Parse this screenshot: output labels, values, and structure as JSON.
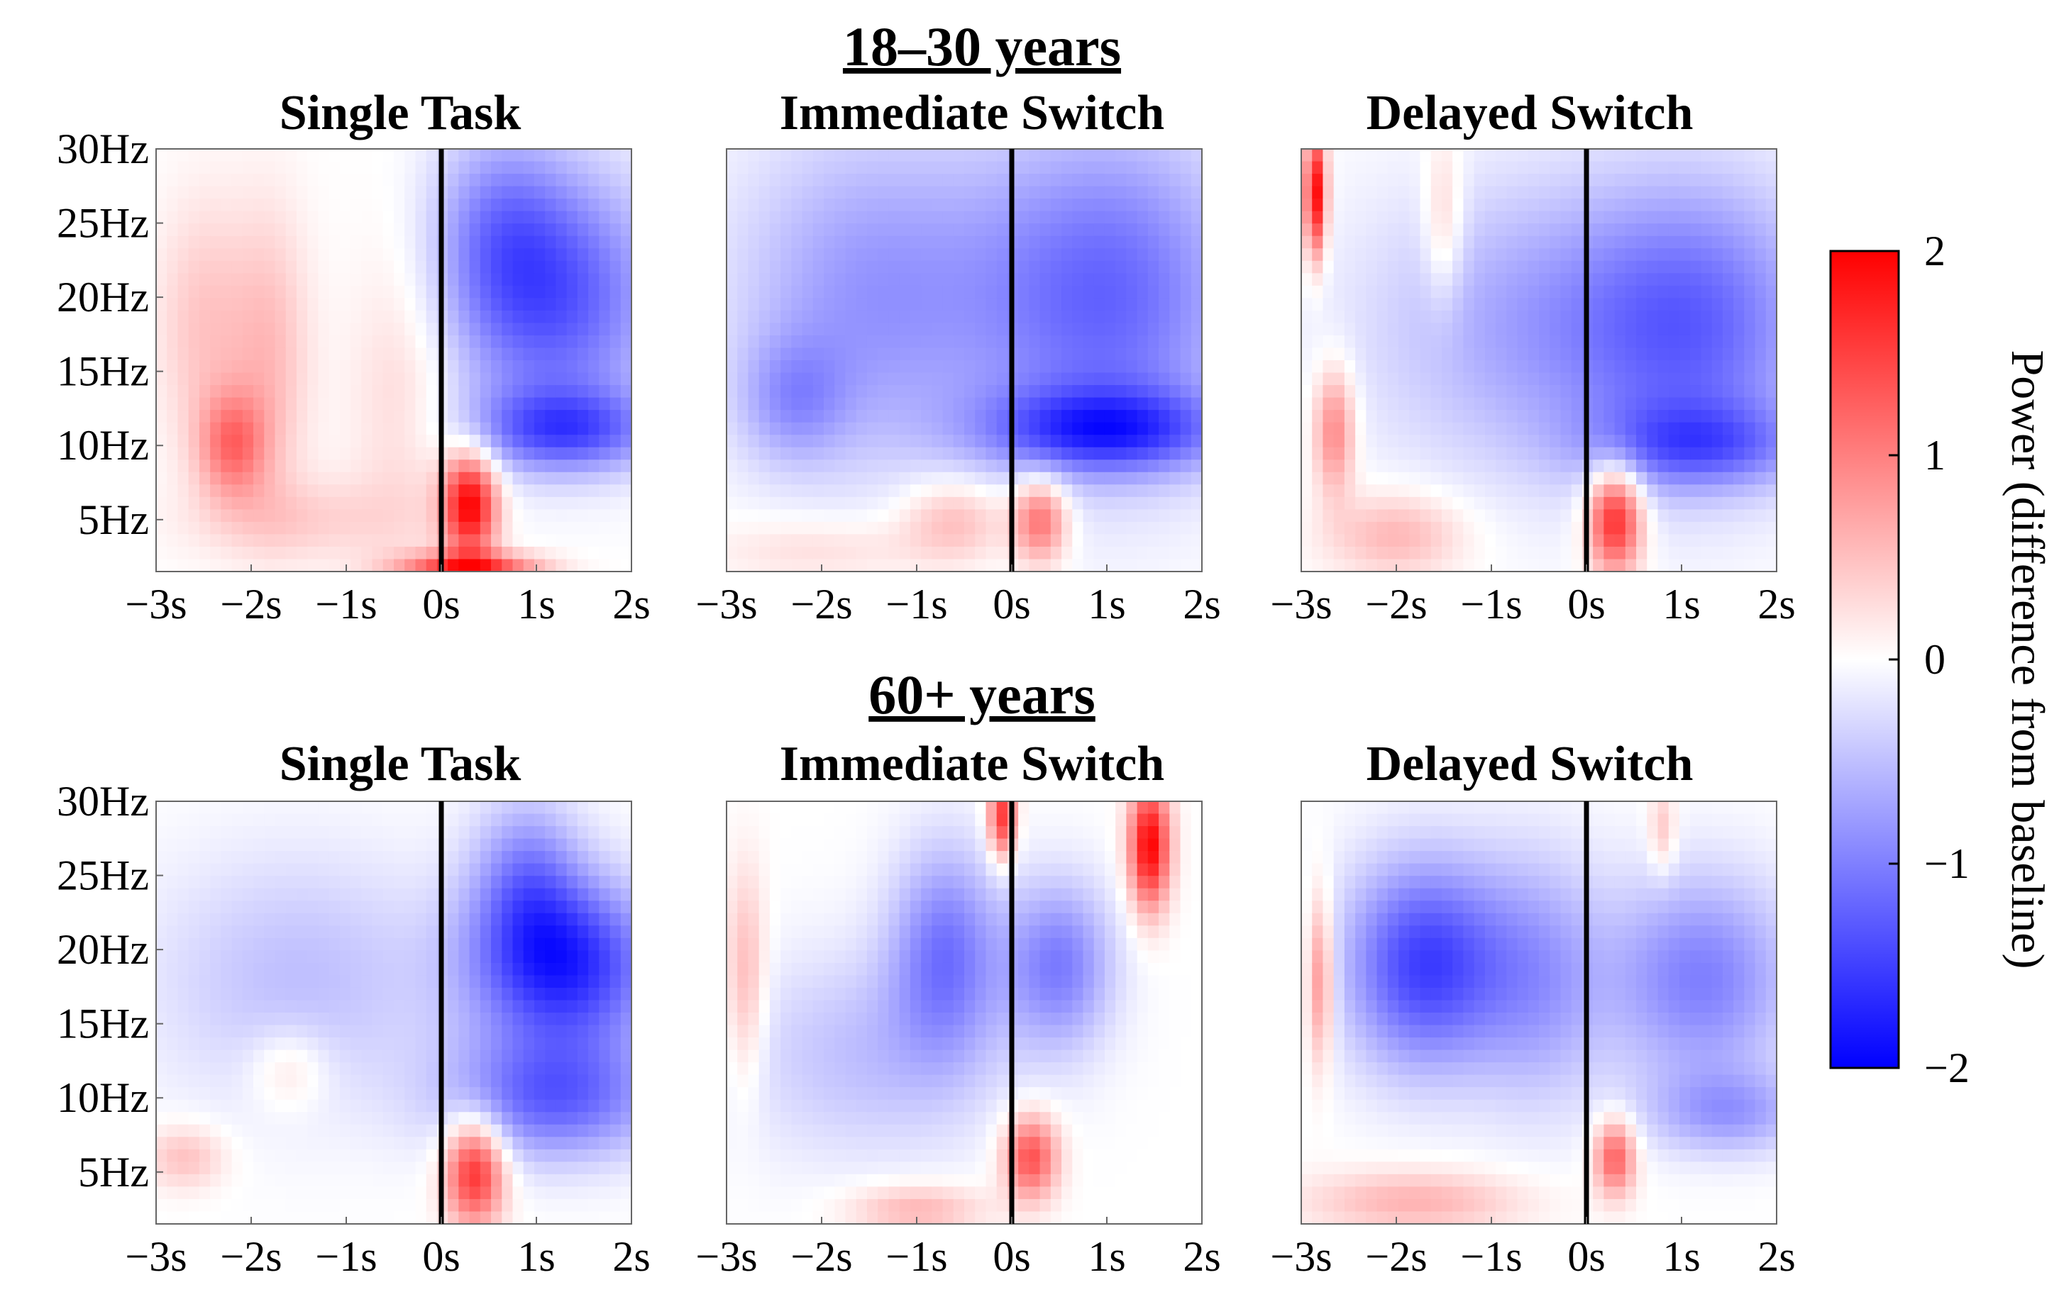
{
  "chart_data": {
    "type": "heatmap",
    "groups": [
      {
        "title": "18–30 years",
        "panels": [
          {
            "title": "Single Task",
            "blobs": [
              {
                "t": -2.2,
                "f": 10,
                "st": 0.25,
                "sf": 2.5,
                "a": 1.0
              },
              {
                "t": -2.5,
                "f": 18,
                "st": 0.35,
                "sf": 6,
                "a": 0.45
              },
              {
                "t": -1.8,
                "f": 16,
                "st": 0.3,
                "sf": 7,
                "a": 0.5
              },
              {
                "t": -0.4,
                "f": 14,
                "st": 0.4,
                "sf": 8,
                "a": 0.35
              },
              {
                "t": -1.5,
                "f": 5,
                "st": 0.8,
                "sf": 2,
                "a": 0.35
              },
              {
                "t": 0.3,
                "f": 6,
                "st": 0.2,
                "sf": 2.5,
                "a": 2.0
              },
              {
                "t": 0.3,
                "f": 1.8,
                "st": 0.5,
                "sf": 0.7,
                "a": 1.6
              },
              {
                "t": 1.2,
                "f": 20,
                "st": 0.8,
                "sf": 6,
                "a": -1.3
              },
              {
                "t": 1.3,
                "f": 11,
                "st": 0.7,
                "sf": 2,
                "a": -1.2
              },
              {
                "t": 0.6,
                "f": 25,
                "st": 0.5,
                "sf": 5,
                "a": -0.6
              }
            ]
          },
          {
            "title": "Immediate Switch",
            "blobs": [
              {
                "t": -1.5,
                "f": 20,
                "st": 1.0,
                "sf": 8,
                "a": -0.8
              },
              {
                "t": 1.0,
                "f": 20,
                "st": 1.0,
                "sf": 8,
                "a": -1.2
              },
              {
                "t": 1.0,
                "f": 11,
                "st": 0.9,
                "sf": 2,
                "a": -1.3
              },
              {
                "t": -2.3,
                "f": 13,
                "st": 0.4,
                "sf": 3,
                "a": -0.6
              },
              {
                "t": -0.6,
                "f": 5,
                "st": 0.4,
                "sf": 2,
                "a": 0.6
              },
              {
                "t": 0.3,
                "f": 5,
                "st": 0.2,
                "sf": 2,
                "a": 1.2
              },
              {
                "t": -2.0,
                "f": 3,
                "st": 0.8,
                "sf": 1.5,
                "a": 0.3
              }
            ]
          },
          {
            "title": "Delayed Switch",
            "blobs": [
              {
                "t": -2.85,
                "f": 27,
                "st": 0.08,
                "sf": 3,
                "a": 2.0
              },
              {
                "t": -2.65,
                "f": 11,
                "st": 0.15,
                "sf": 3,
                "a": 1.0
              },
              {
                "t": -2.0,
                "f": 4,
                "st": 0.5,
                "sf": 2,
                "a": 0.6
              },
              {
                "t": -1.5,
                "f": 25,
                "st": 0.15,
                "sf": 4,
                "a": 0.5
              },
              {
                "t": 0.3,
                "f": 5,
                "st": 0.2,
                "sf": 2.5,
                "a": 1.8
              },
              {
                "t": -0.5,
                "f": 18,
                "st": 1.3,
                "sf": 7,
                "a": -0.7
              },
              {
                "t": 1.2,
                "f": 18,
                "st": 0.9,
                "sf": 7,
                "a": -1.0
              },
              {
                "t": 1.2,
                "f": 10,
                "st": 0.8,
                "sf": 2,
                "a": -0.9
              }
            ]
          }
        ]
      },
      {
        "title": "60+ years",
        "panels": [
          {
            "title": "Single Task",
            "blobs": [
              {
                "t": 1.3,
                "f": 19,
                "st": 0.7,
                "sf": 4,
                "a": -1.7
              },
              {
                "t": 1.2,
                "f": 10,
                "st": 0.8,
                "sf": 3,
                "a": -1.2
              },
              {
                "t": 0.9,
                "f": 25,
                "st": 0.4,
                "sf": 4,
                "a": -0.8
              },
              {
                "t": -1.5,
                "f": 18,
                "st": 1.1,
                "sf": 6,
                "a": -0.5
              },
              {
                "t": 0.35,
                "f": 5,
                "st": 0.22,
                "sf": 2.5,
                "a": 1.7
              },
              {
                "t": -2.7,
                "f": 6,
                "st": 0.3,
                "sf": 1.5,
                "a": 0.5
              },
              {
                "t": -1.6,
                "f": 12,
                "st": 0.3,
                "sf": 2,
                "a": 0.4
              }
            ]
          },
          {
            "title": "Immediate Switch",
            "blobs": [
              {
                "t": 1.45,
                "f": 27,
                "st": 0.15,
                "sf": 3,
                "a": 2.0
              },
              {
                "t": -0.1,
                "f": 29,
                "st": 0.1,
                "sf": 2,
                "a": 1.6
              },
              {
                "t": -0.7,
                "f": 20,
                "st": 0.4,
                "sf": 5,
                "a": -1.0
              },
              {
                "t": 0.5,
                "f": 19,
                "st": 0.4,
                "sf": 4,
                "a": -1.0
              },
              {
                "t": 0.2,
                "f": 6,
                "st": 0.2,
                "sf": 2,
                "a": 1.4
              },
              {
                "t": -1.0,
                "f": 2.5,
                "st": 0.5,
                "sf": 1.2,
                "a": 0.6
              },
              {
                "t": -2.8,
                "f": 18,
                "st": 0.15,
                "sf": 5,
                "a": 0.6
              },
              {
                "t": -1.5,
                "f": 13,
                "st": 1.0,
                "sf": 5,
                "a": -0.5
              }
            ]
          },
          {
            "title": "Delayed Switch",
            "blobs": [
              {
                "t": -1.7,
                "f": 19,
                "st": 0.6,
                "sf": 5,
                "a": -1.5
              },
              {
                "t": -0.5,
                "f": 18,
                "st": 0.5,
                "sf": 6,
                "a": -0.7
              },
              {
                "t": 1.2,
                "f": 18,
                "st": 0.7,
                "sf": 5,
                "a": -1.0
              },
              {
                "t": 1.5,
                "f": 9,
                "st": 0.6,
                "sf": 2,
                "a": -0.7
              },
              {
                "t": 0.3,
                "f": 6,
                "st": 0.15,
                "sf": 1.8,
                "a": 1.3
              },
              {
                "t": -2.8,
                "f": 18,
                "st": 0.1,
                "sf": 4,
                "a": 1.0
              },
              {
                "t": -1.8,
                "f": 3,
                "st": 0.8,
                "sf": 1.5,
                "a": 0.6
              },
              {
                "t": 0.8,
                "f": 28,
                "st": 0.1,
                "sf": 2,
                "a": 0.5
              }
            ]
          }
        ]
      }
    ],
    "x_ticks": [
      "−3s",
      "−2s",
      "−1s",
      "0s",
      "1s",
      "2s"
    ],
    "x_tick_values": [
      -3,
      -2,
      -1,
      0,
      1,
      2
    ],
    "y_ticks": [
      "30Hz",
      "25Hz",
      "20Hz",
      "15Hz",
      "10Hz",
      "5Hz"
    ],
    "y_tick_values": [
      30,
      25,
      20,
      15,
      10,
      5
    ],
    "xlim": [
      -3,
      2
    ],
    "ylim": [
      1.5,
      30
    ],
    "event_line_at": 0,
    "colorbar": {
      "label": "Power (difference from baseline)",
      "ticks": [
        "2",
        "1",
        "0",
        "−1",
        "−2"
      ],
      "tick_values": [
        2,
        1,
        0,
        -1,
        -2
      ],
      "range": [
        -2,
        2
      ],
      "colormap": [
        "#0000ff",
        "#ffffff",
        "#ff0000"
      ]
    }
  }
}
